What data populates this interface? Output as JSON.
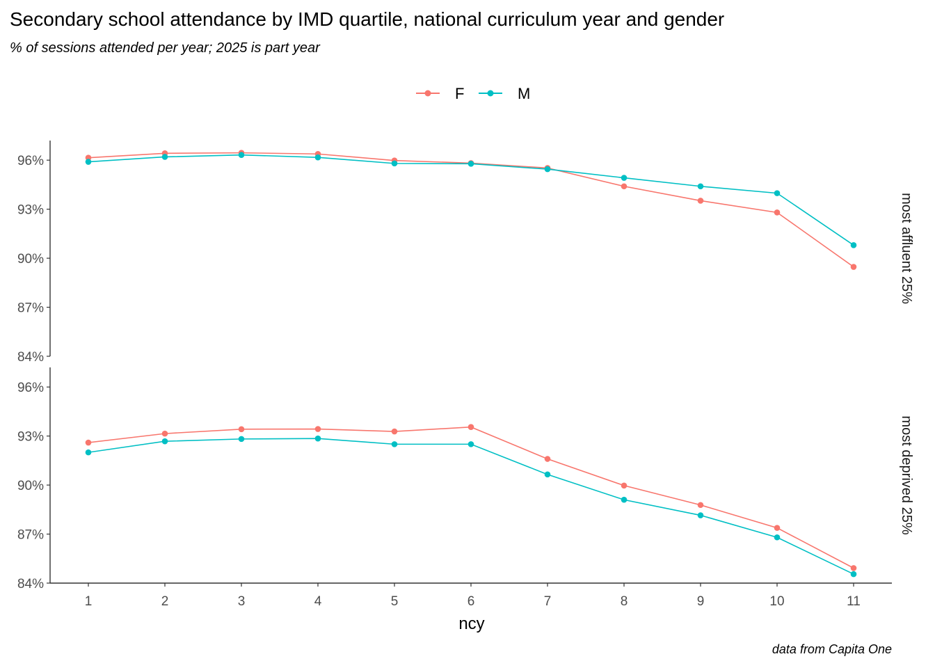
{
  "title": "Secondary school attendance by IMD quartile, national curriculum year and gender",
  "subtitle": "% of sessions attended per year; 2025 is part year",
  "caption": "data from Capita One",
  "colors": {
    "F": "#F8766D",
    "M": "#00BFC4",
    "axis": "#333333",
    "tick_text": "#4d4d4d"
  },
  "chart_data": {
    "type": "line",
    "xlabel": "ncy",
    "ylabel": "",
    "x": [
      1,
      2,
      3,
      4,
      5,
      6,
      7,
      8,
      9,
      10,
      11
    ],
    "x_ticks": [
      "1",
      "2",
      "3",
      "4",
      "5",
      "6",
      "7",
      "8",
      "9",
      "10",
      "11"
    ],
    "ylim": [
      84,
      97.2
    ],
    "y_ticks": [
      "84%",
      "87%",
      "90%",
      "93%",
      "96%"
    ],
    "y_tick_values": [
      84,
      87,
      90,
      93,
      96
    ],
    "legend": {
      "position": "top",
      "entries": [
        "F",
        "M"
      ]
    },
    "grid": false,
    "panels": [
      {
        "label": "most affluent 25%",
        "series": [
          {
            "name": "F",
            "values": [
              96.15,
              96.42,
              96.45,
              96.38,
              95.98,
              95.82,
              95.52,
              94.4,
              93.52,
              92.8,
              89.47
            ]
          },
          {
            "name": "M",
            "values": [
              95.9,
              96.2,
              96.32,
              96.17,
              95.8,
              95.78,
              95.45,
              94.92,
              94.4,
              93.98,
              90.8
            ]
          }
        ]
      },
      {
        "label": "most deprived 25%",
        "series": [
          {
            "name": "F",
            "values": [
              92.6,
              93.15,
              93.42,
              93.43,
              93.28,
              93.55,
              91.6,
              89.97,
              88.78,
              87.38,
              84.92
            ]
          },
          {
            "name": "M",
            "values": [
              92.0,
              92.68,
              92.82,
              92.85,
              92.5,
              92.5,
              90.65,
              89.1,
              88.15,
              86.8,
              84.55
            ]
          }
        ]
      }
    ]
  }
}
